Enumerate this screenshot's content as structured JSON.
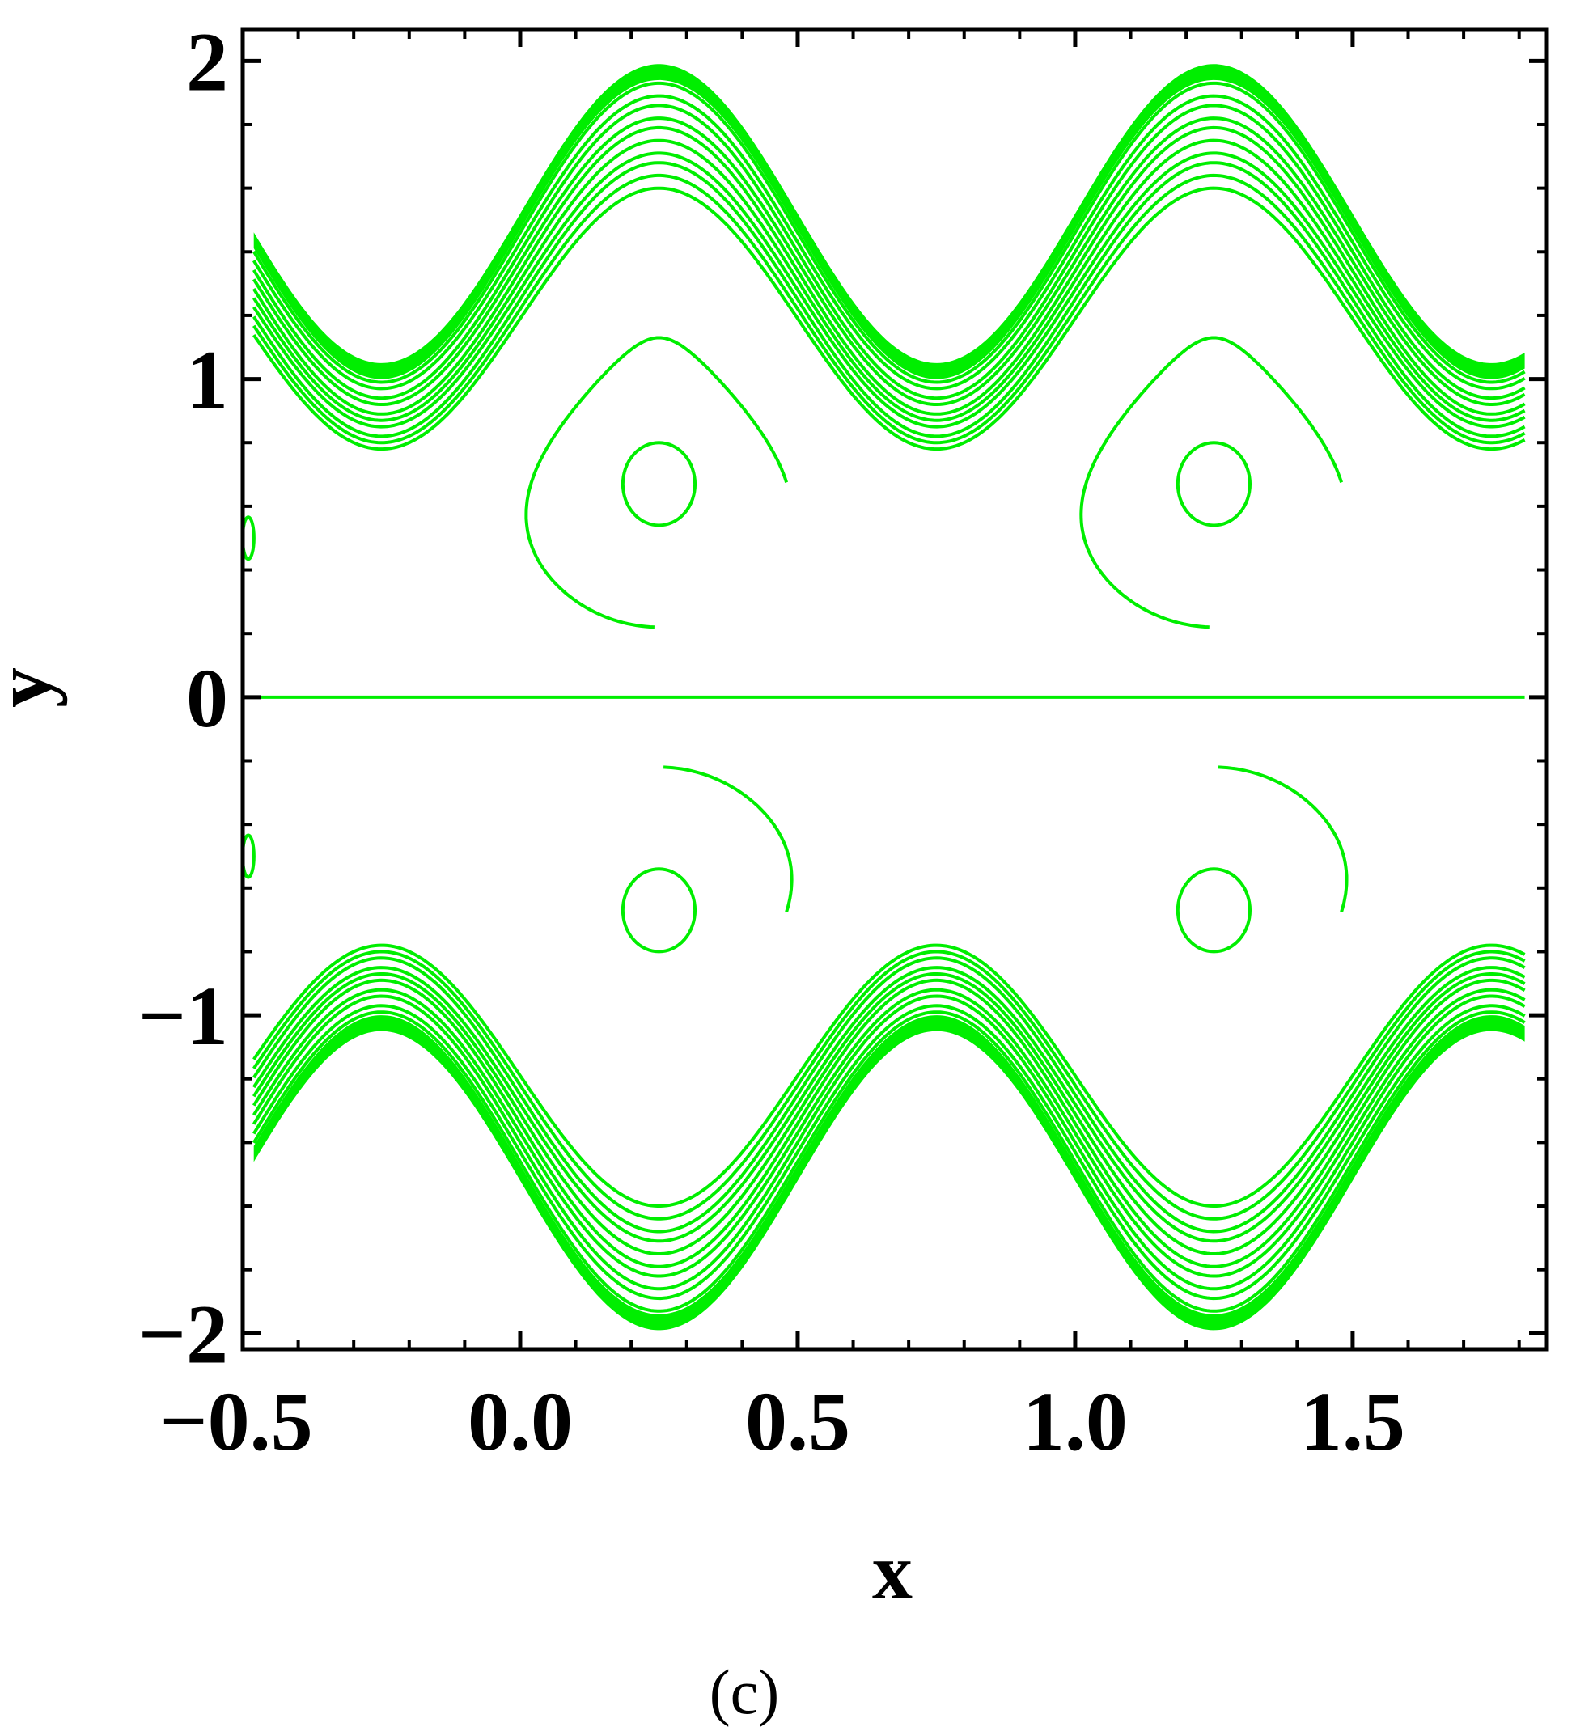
{
  "panel_label": "(c)",
  "chart_data": {
    "type": "contour",
    "xlabel": "x",
    "ylabel": "y",
    "xlim": [
      -0.5,
      1.85
    ],
    "ylim": [
      -2.05,
      2.1
    ],
    "x_ticks": [
      -0.5,
      0.0,
      0.5,
      1.0,
      1.5
    ],
    "x_tick_labels": [
      "−0.5",
      "0.0",
      "0.5",
      "1.0",
      "1.5"
    ],
    "y_ticks": [
      -2,
      -1,
      0,
      1,
      2
    ],
    "y_tick_labels": [
      "−2",
      "−1",
      "0",
      "1",
      "2"
    ],
    "x_minor_step": 0.1,
    "y_minor_step": 0.2,
    "grid": false,
    "line_color": "#00ee00",
    "wall_profile": {
      "description_value": "y = 1.5 + 0.5*sin(2*pi*(x - 0.25) + pi/2)",
      "mean": 1.5,
      "amplitude": 0.47,
      "period": 1.0,
      "crest_x": [
        0.25,
        1.25
      ],
      "trough_x": [
        -0.25,
        0.75
      ],
      "crest_y": 1.98,
      "trough_y": 1.04,
      "x_start": -0.48,
      "x_end": 1.81
    },
    "band_levels": [
      {
        "mean": 1.19,
        "amplitude": 0.41
      },
      {
        "mean": 1.22,
        "amplitude": 0.42
      },
      {
        "mean": 1.25,
        "amplitude": 0.43
      },
      {
        "mean": 1.28,
        "amplitude": 0.43
      },
      {
        "mean": 1.31,
        "amplitude": 0.44
      },
      {
        "mean": 1.34,
        "amplitude": 0.45
      },
      {
        "mean": 1.37,
        "amplitude": 0.45
      },
      {
        "mean": 1.4,
        "amplitude": 0.46
      },
      {
        "mean": 1.43,
        "amplitude": 0.46
      },
      {
        "mean": 1.46,
        "amplitude": 0.47
      }
    ],
    "centerline_y": 0,
    "trapped_boluses": [
      {
        "cx": 0.25,
        "cy": 0.67,
        "outer_top": 1.13,
        "outer_bottom": 0.22,
        "outer_halfwidth": 0.26,
        "inner_ry": 0.13,
        "inner_rx": 0.065
      },
      {
        "cx": 1.25,
        "cy": 0.67,
        "outer_top": 1.13,
        "outer_bottom": 0.22,
        "outer_halfwidth": 0.26,
        "inner_ry": 0.13,
        "inner_rx": 0.065
      },
      {
        "cx": 0.25,
        "cy": -0.67,
        "outer_top": -0.22,
        "outer_bottom": -1.13,
        "outer_halfwidth": 0.26,
        "inner_ry": 0.13,
        "inner_rx": 0.065
      },
      {
        "cx": 1.25,
        "cy": -0.67,
        "outer_top": -0.22,
        "outer_bottom": -1.13,
        "outer_halfwidth": 0.26,
        "inner_ry": 0.13,
        "inner_rx": 0.065
      }
    ],
    "edge_fragments": [
      {
        "x": -0.49,
        "y": 0.5
      },
      {
        "x": -0.49,
        "y": -0.5
      }
    ]
  }
}
